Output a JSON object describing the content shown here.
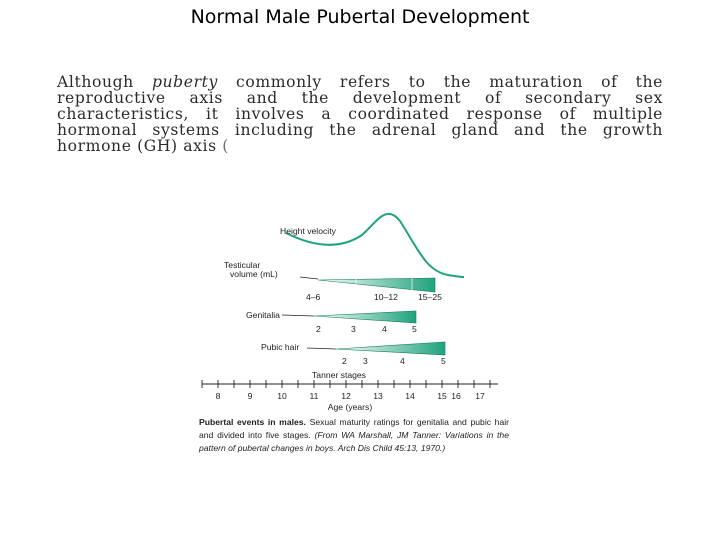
{
  "slide": {
    "title": "Normal Male Pubertal Development"
  },
  "excerpt": {
    "part1": "Although ",
    "puberty": "puberty",
    "part2": " commonly refers to the maturation of the reproductive axis and the development of secondary sex characteristics, it involves a coordinated response of multiple hormonal systems including the adrenal gland and the growth hormone (GH) axis",
    "tail": " ("
  },
  "figure": {
    "height_velocity_label": "Height velocity",
    "testicular_label_line1": "Testicular",
    "testicular_label_line2": "volume (mL)",
    "testicular_ticks": [
      "4–6",
      "10–12",
      "15–25"
    ],
    "genitalia_label": "Genitalia",
    "genitalia_stages": [
      "2",
      "3",
      "4",
      "5"
    ],
    "pubic_hair_label": "Pubic hair",
    "pubic_hair_stages": [
      "2",
      "3",
      "4",
      "5"
    ],
    "tanner_label": "Tanner stages",
    "age_ticks": [
      "8",
      "9",
      "10",
      "11",
      "12",
      "13",
      "14",
      "15",
      "16",
      "17"
    ],
    "age_label": "Age (years)",
    "accent_color": "#1fa37c"
  },
  "caption": {
    "bold": "Pubertal events in males.",
    "plain": " Sexual maturity ratings for genitalia and pubic hair and divided into five stages. ",
    "italic": "(From WA Marshall, JM Tanner: Variations in the pattern of pubertal changes in boys. Arch Dis Child 45:13, 1970.)"
  }
}
